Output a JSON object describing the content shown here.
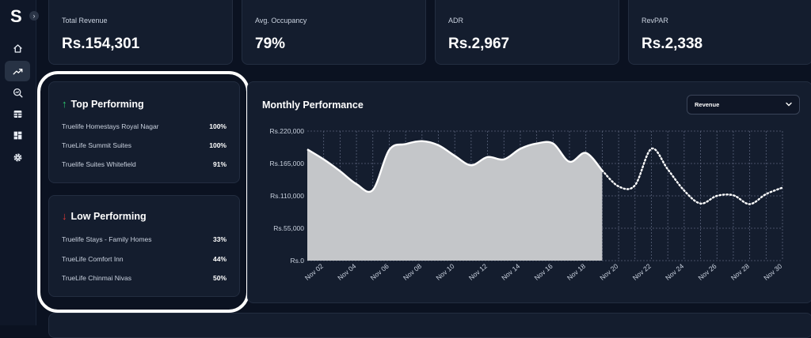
{
  "app": {
    "logo_letter": "S",
    "expand_glyph": "›"
  },
  "sidebar": {
    "items": [
      {
        "icon": "home-icon",
        "active": false
      },
      {
        "icon": "trend-icon",
        "active": true
      },
      {
        "icon": "search-chart-icon",
        "active": false
      },
      {
        "icon": "table-icon",
        "active": false
      },
      {
        "icon": "dashboard-icon",
        "active": false
      },
      {
        "icon": "gear-icon",
        "active": false
      }
    ]
  },
  "kpis": [
    {
      "label": "Total Revenue",
      "value": "Rs.154,301"
    },
    {
      "label": "Avg. Occupancy",
      "value": "79%"
    },
    {
      "label": "ADR",
      "value": "Rs.2,967"
    },
    {
      "label": "RevPAR",
      "value": "Rs.2,338"
    }
  ],
  "top_performing": {
    "title": "Top Performing",
    "arrow": "↑",
    "arrow_color": "#2ecc71",
    "rows": [
      {
        "name": "Truelife Homestays Royal Nagar",
        "pct": "100%"
      },
      {
        "name": "TrueLife Summit Suites",
        "pct": "100%"
      },
      {
        "name": "Truelife Suites Whitefield",
        "pct": "91%"
      }
    ]
  },
  "low_performing": {
    "title": "Low Performing",
    "arrow": "↓",
    "arrow_color": "#e53935",
    "rows": [
      {
        "name": "Truelife Stays - Family Homes",
        "pct": "33%"
      },
      {
        "name": "TrueLife Comfort Inn",
        "pct": "44%"
      },
      {
        "name": "TrueLife Chinmai Nivas",
        "pct": "50%"
      }
    ]
  },
  "monthly": {
    "title": "Monthly Performance",
    "metric_select": "Revenue"
  },
  "chart_data": {
    "type": "area",
    "x": [
      "Nov 01",
      "Nov 02",
      "Nov 03",
      "Nov 04",
      "Nov 05",
      "Nov 06",
      "Nov 07",
      "Nov 08",
      "Nov 09",
      "Nov 10",
      "Nov 11",
      "Nov 12",
      "Nov 13",
      "Nov 14",
      "Nov 15",
      "Nov 16",
      "Nov 17",
      "Nov 18",
      "Nov 19",
      "Nov 20",
      "Nov 21",
      "Nov 22",
      "Nov 23",
      "Nov 24",
      "Nov 25",
      "Nov 26",
      "Nov 27",
      "Nov 28",
      "Nov 29",
      "Nov 30"
    ],
    "actual": [
      189000,
      172000,
      152000,
      130000,
      120000,
      188000,
      198000,
      203000,
      196000,
      178000,
      162000,
      176000,
      172000,
      190000,
      199000,
      199000,
      168000,
      183000,
      153000
    ],
    "forecast": [
      null,
      null,
      null,
      null,
      null,
      null,
      null,
      null,
      null,
      null,
      null,
      null,
      null,
      null,
      null,
      null,
      null,
      null,
      153000,
      126000,
      128000,
      190000,
      155000,
      119000,
      97000,
      110000,
      111000,
      96000,
      113000,
      124000
    ],
    "xticks": [
      "Nov 02",
      "Nov 04",
      "Nov 06",
      "Nov 08",
      "Nov 10",
      "Nov 12",
      "Nov 14",
      "Nov 16",
      "Nov 18",
      "Nov 20",
      "Nov 22",
      "Nov 24",
      "Nov 26",
      "Nov 28",
      "Nov 30"
    ],
    "yticks": [
      "Rs.0",
      "Rs.55,000",
      "Rs.110,000",
      "Rs.165,000",
      "Rs.220,000"
    ],
    "ylim": [
      0,
      220000
    ],
    "grid": true,
    "area_color": "#c4c6c9",
    "line_color": "#ffffff"
  }
}
